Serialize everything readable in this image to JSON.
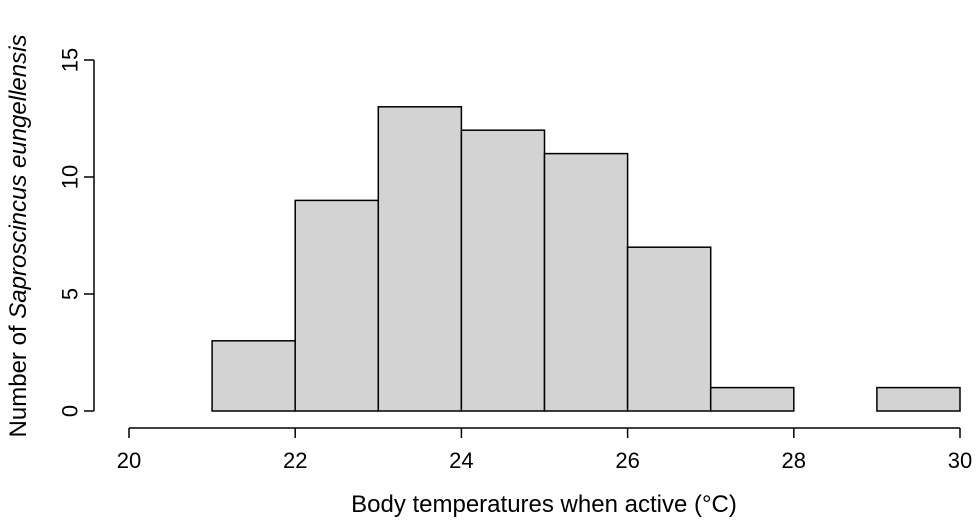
{
  "chart_data": {
    "type": "bar",
    "subtype": "histogram",
    "bin_edges": [
      21,
      22,
      23,
      24,
      25,
      26,
      27,
      28,
      29,
      30
    ],
    "values": [
      3,
      9,
      13,
      12,
      11,
      7,
      1,
      0,
      1
    ],
    "xlabel": "Body temperatures when active (°C)",
    "ylabel_prefix": "Number of ",
    "ylabel_italic": "Saproscincus eungellensis",
    "xlim": [
      20,
      30
    ],
    "ylim": [
      0,
      15
    ],
    "x_ticks": [
      20,
      22,
      24,
      26,
      28,
      30
    ],
    "y_ticks": [
      0,
      5,
      10,
      15
    ],
    "grid": false,
    "colors": {
      "bar_fill": "#d3d3d3",
      "bar_stroke": "#000000",
      "axis": "#000000"
    }
  }
}
